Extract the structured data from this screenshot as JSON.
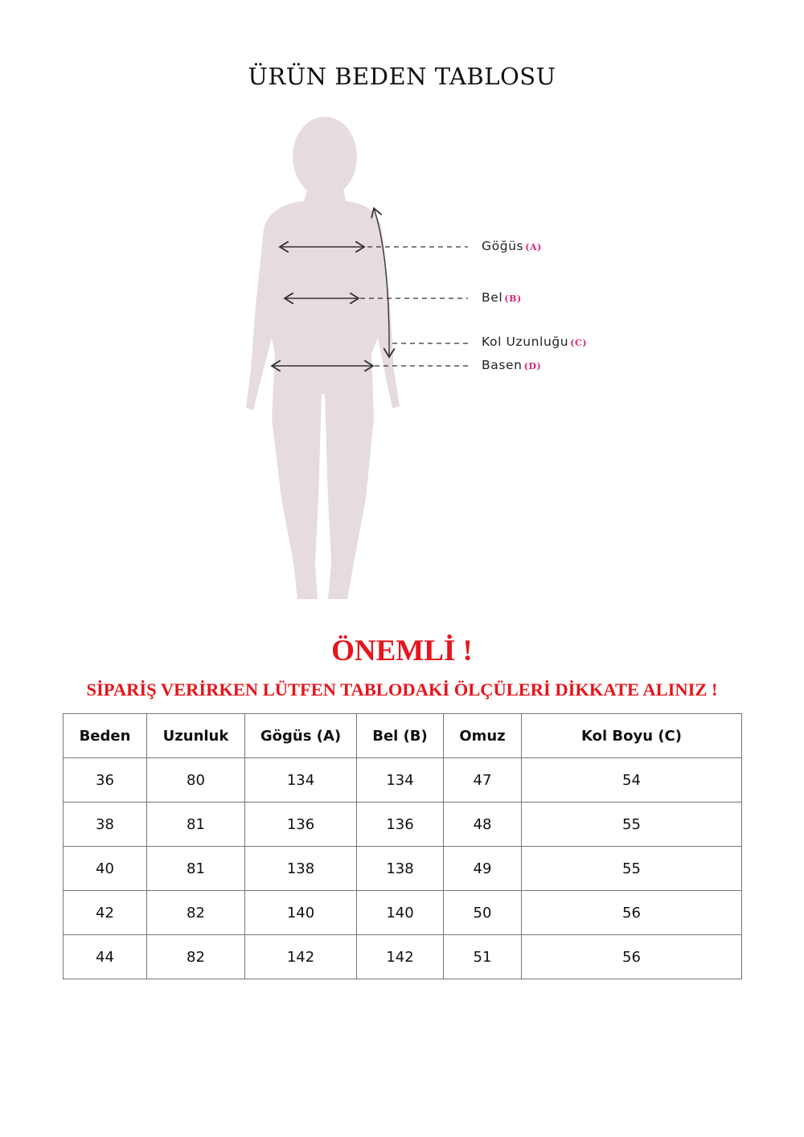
{
  "title": "ÜRÜN BEDEN TABLOSU",
  "colors": {
    "silhouette": "#e6dcdd",
    "accent_red": "#e8141b",
    "code_pink": "#d6257a"
  },
  "measurements": [
    {
      "label": "Göğüs",
      "code": "(A)"
    },
    {
      "label": "Bel",
      "code": "(B)"
    },
    {
      "label": "Kol Uzunluğu",
      "code": "(C)"
    },
    {
      "label": "Basen",
      "code": "(D)"
    }
  ],
  "important": "ÖNEMLİ !",
  "warning": "SİPARİŞ VERİRKEN LÜTFEN TABLODAKİ ÖLÇÜLERİ DİKKATE ALINIZ !",
  "table": {
    "headers": [
      "Beden",
      "Uzunluk",
      "Gögüs (A)",
      "Bel (B)",
      "Omuz",
      "Kol Boyu (C)"
    ],
    "rows": [
      [
        "36",
        "80",
        "134",
        "134",
        "47",
        "54"
      ],
      [
        "38",
        "81",
        "136",
        "136",
        "48",
        "55"
      ],
      [
        "40",
        "81",
        "138",
        "138",
        "49",
        "55"
      ],
      [
        "42",
        "82",
        "140",
        "140",
        "50",
        "56"
      ],
      [
        "44",
        "82",
        "142",
        "142",
        "51",
        "56"
      ]
    ]
  }
}
